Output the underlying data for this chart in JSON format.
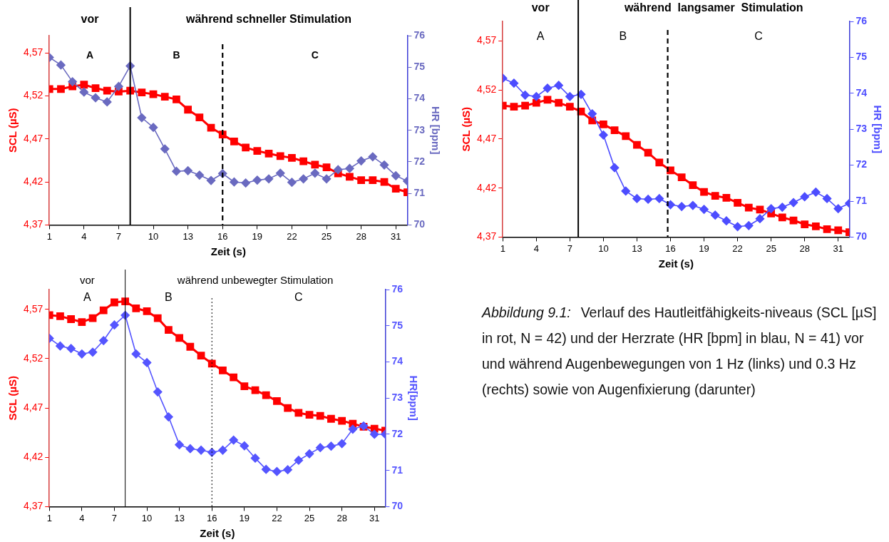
{
  "chart_data": [
    {
      "type": "line",
      "xlabel": "Zeit (s)",
      "ylabel": "SCL (µS)",
      "y2label": "HR [bpm]",
      "grid": false,
      "legend": false,
      "x": [
        1,
        2,
        3,
        4,
        5,
        6,
        7,
        8,
        9,
        10,
        11,
        12,
        13,
        14,
        15,
        16,
        17,
        18,
        19,
        20,
        21,
        22,
        23,
        24,
        25,
        26,
        27,
        28,
        29,
        30,
        31,
        32
      ],
      "xlim": [
        1,
        32
      ],
      "xticks": [
        1,
        4,
        7,
        10,
        13,
        16,
        19,
        22,
        25,
        28,
        31
      ],
      "ylim": [
        4.37,
        4.59
      ],
      "yticks": [
        {
          "value": 4.37,
          "label": "4,37"
        },
        {
          "value": 4.42,
          "label": "4,42"
        },
        {
          "value": 4.47,
          "label": "4,47"
        },
        {
          "value": 4.52,
          "label": "4,52"
        },
        {
          "value": 4.57,
          "label": "4,57"
        }
      ],
      "y2lim": [
        70,
        76
      ],
      "y2ticks": [
        70,
        71,
        72,
        73,
        74,
        75,
        76
      ],
      "series": [
        {
          "color": "#ff0000",
          "marker": "square",
          "values": [
            4.528,
            4.528,
            4.531,
            4.533,
            4.529,
            4.526,
            4.525,
            4.526,
            4.524,
            4.522,
            4.519,
            4.516,
            4.504,
            4.495,
            4.483,
            4.475,
            4.467,
            4.46,
            4.456,
            4.453,
            4.45,
            4.448,
            4.444,
            4.44,
            4.437,
            4.43,
            4.426,
            4.422,
            4.422,
            4.42,
            4.412,
            4.408
          ]
        },
        {
          "color": "#6a6ac0",
          "marker": "diamond",
          "axis": "y2",
          "values": [
            75.31,
            75.07,
            74.54,
            74.21,
            74.03,
            73.9,
            74.39,
            75.04,
            73.4,
            73.09,
            72.41,
            71.7,
            71.72,
            71.58,
            71.41,
            71.63,
            71.36,
            71.33,
            71.42,
            71.46,
            71.64,
            71.35,
            71.46,
            71.64,
            71.46,
            71.75,
            71.79,
            72.03,
            72.16,
            71.9,
            71.56,
            71.39
          ]
        }
      ],
      "ref_lines": [
        {
          "axis": "x",
          "value": 8,
          "color": "#000000",
          "line_style": "solid"
        },
        {
          "axis": "x",
          "value": 16,
          "color": "#000000",
          "line_style": "dashed"
        }
      ],
      "annotations": [
        "vor",
        "während schneller Stimulation",
        "A",
        "B",
        "C"
      ]
    },
    {
      "type": "line",
      "xlabel": "Zeit (s)",
      "ylabel": "SCL (µS)",
      "y2label": "HR [bpm]",
      "grid": false,
      "legend": false,
      "x": [
        1,
        2,
        3,
        4,
        5,
        6,
        7,
        8,
        9,
        10,
        11,
        12,
        13,
        14,
        15,
        16,
        17,
        18,
        19,
        20,
        21,
        22,
        23,
        24,
        25,
        26,
        27,
        28,
        29,
        30,
        31,
        32
      ],
      "xlim": [
        1,
        32
      ],
      "xticks": [
        1,
        4,
        7,
        10,
        13,
        16,
        19,
        22,
        25,
        28,
        31
      ],
      "ylim": [
        4.37,
        4.59
      ],
      "yticks": [
        {
          "value": 4.37,
          "label": "4,37"
        },
        {
          "value": 4.42,
          "label": "4,42"
        },
        {
          "value": 4.47,
          "label": "4,47"
        },
        {
          "value": 4.52,
          "label": "4,52"
        },
        {
          "value": 4.57,
          "label": "4,57"
        }
      ],
      "y2lim": [
        70,
        76
      ],
      "y2ticks": [
        70,
        71,
        72,
        73,
        74,
        75,
        76
      ],
      "series": [
        {
          "color": "#ff0000",
          "marker": "square",
          "values": [
            4.504,
            4.503,
            4.504,
            4.507,
            4.51,
            4.507,
            4.503,
            4.498,
            4.489,
            4.485,
            4.479,
            4.473,
            4.464,
            4.456,
            4.446,
            4.438,
            4.431,
            4.423,
            4.416,
            4.412,
            4.41,
            4.405,
            4.4,
            4.398,
            4.394,
            4.39,
            4.387,
            4.383,
            4.381,
            4.378,
            4.377,
            4.375
          ]
        },
        {
          "color": "#4d4dff",
          "marker": "diamond",
          "axis": "y2",
          "values": [
            74.42,
            74.28,
            73.95,
            73.91,
            74.14,
            74.22,
            73.91,
            73.97,
            73.43,
            72.84,
            71.93,
            71.28,
            71.07,
            71.05,
            71.07,
            70.9,
            70.85,
            70.88,
            70.77,
            70.61,
            70.45,
            70.29,
            70.32,
            70.51,
            70.79,
            70.83,
            70.96,
            71.12,
            71.25,
            71.07,
            70.79,
            70.94
          ]
        }
      ],
      "ref_lines": [
        {
          "axis": "x",
          "value": 7.75,
          "color": "#000000",
          "line_style": "solid"
        },
        {
          "axis": "x",
          "value": 15.75,
          "color": "#000000",
          "line_style": "dashed"
        }
      ],
      "annotations": [
        "vor",
        "während  langsamer  Stimulation",
        "A",
        "B",
        "C"
      ]
    },
    {
      "type": "line",
      "xlabel": "Zeit (s)",
      "ylabel": "SCL (µS)",
      "y2label": "HR[bpm]",
      "grid": false,
      "legend": false,
      "x": [
        1,
        2,
        3,
        4,
        5,
        6,
        7,
        8,
        9,
        10,
        11,
        12,
        13,
        14,
        15,
        16,
        17,
        18,
        19,
        20,
        21,
        22,
        23,
        24,
        25,
        26,
        27,
        28,
        29,
        30,
        31,
        32
      ],
      "xlim": [
        1,
        32
      ],
      "xticks": [
        1,
        4,
        7,
        10,
        13,
        16,
        19,
        22,
        25,
        28,
        31
      ],
      "ylim": [
        4.37,
        4.59
      ],
      "yticks": [
        {
          "value": 4.37,
          "label": "4,37"
        },
        {
          "value": 4.42,
          "label": "4,42"
        },
        {
          "value": 4.47,
          "label": "4,47"
        },
        {
          "value": 4.52,
          "label": "4,52"
        },
        {
          "value": 4.57,
          "label": "4,57"
        }
      ],
      "y2lim": [
        70,
        76
      ],
      "y2ticks": [
        70,
        71,
        72,
        73,
        74,
        75,
        76
      ],
      "series": [
        {
          "color": "#ff0000",
          "marker": "square",
          "values": [
            4.564,
            4.563,
            4.56,
            4.557,
            4.561,
            4.569,
            4.577,
            4.578,
            4.571,
            4.568,
            4.561,
            4.549,
            4.541,
            4.532,
            4.523,
            4.515,
            4.508,
            4.501,
            4.492,
            4.488,
            4.483,
            4.477,
            4.47,
            4.465,
            4.463,
            4.462,
            4.459,
            4.457,
            4.454,
            4.451,
            4.449,
            4.447
          ]
        },
        {
          "color": "#5555ff",
          "marker": "diamond",
          "axis": "y2",
          "values": [
            74.65,
            74.44,
            74.37,
            74.22,
            74.27,
            74.59,
            75.02,
            75.29,
            74.22,
            73.98,
            73.17,
            72.48,
            71.71,
            71.6,
            71.56,
            71.5,
            71.56,
            71.84,
            71.68,
            71.34,
            71.03,
            70.97,
            71.02,
            71.28,
            71.46,
            71.63,
            71.67,
            71.74,
            72.14,
            72.23,
            72,
            72
          ]
        }
      ],
      "ref_lines": [
        {
          "axis": "x",
          "value": 8,
          "color": "#000000",
          "line_style": "solid"
        },
        {
          "axis": "x",
          "value": 16,
          "color": "#000000",
          "line_style": "dotted"
        }
      ],
      "annotations": [
        "vor",
        "während unbewegter Stimulation",
        "A",
        "B",
        "C"
      ]
    },
    {
      "type": "other",
      "annotations": [
        "Abbildung 9.1:",
        "Verlauf des Hautleitfähigkeits-niveaus (SCL [µS] in rot, N = 42) und der Herzrate (HR [bpm] in blau, N = 41) vor und während Augenbewegungen von 1 Hz (links) und 0.3 Hz (rechts) sowie von Augenfixierung (darunter)"
      ]
    }
  ]
}
